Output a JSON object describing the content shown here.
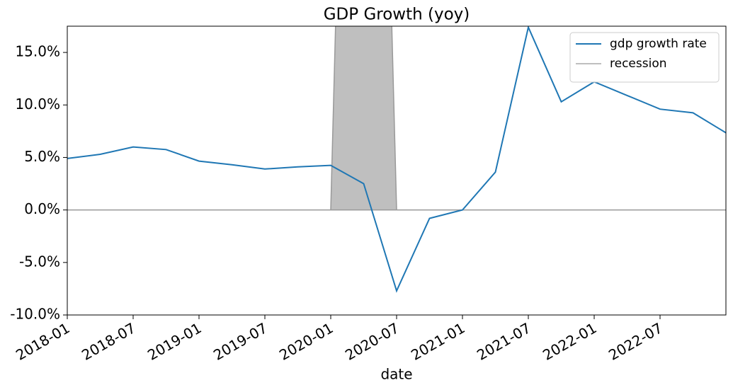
{
  "chart_data": {
    "type": "line",
    "title": "GDP Growth (yoy)",
    "x_label": "date",
    "xlim": [
      "2018-01",
      "2023-01"
    ],
    "xticks": [
      "2018-01",
      "2018-07",
      "2019-01",
      "2019-07",
      "2020-01",
      "2020-07",
      "2021-01",
      "2021-07",
      "2022-01",
      "2022-07"
    ],
    "ylim": [
      -10,
      17.5
    ],
    "yticks": [
      {
        "value": -10,
        "label": "-10.0%"
      },
      {
        "value": -5,
        "label": "-5.0%"
      },
      {
        "value": 0,
        "label": "0.0%"
      },
      {
        "value": 5,
        "label": "5.0%"
      },
      {
        "value": 10,
        "label": "10.0%"
      },
      {
        "value": 15,
        "label": "15.0%"
      }
    ],
    "legend": "upper right",
    "series": [
      {
        "name": "gdp growth rate",
        "color": "#1f77b4",
        "fill": false,
        "x": [
          "2018-01",
          "2018-04",
          "2018-07",
          "2018-10",
          "2019-01",
          "2019-04",
          "2019-07",
          "2019-10",
          "2020-01",
          "2020-04",
          "2020-07",
          "2020-10",
          "2021-01",
          "2021-04",
          "2021-07",
          "2021-10",
          "2022-01",
          "2022-04",
          "2022-07",
          "2022-10",
          "2023-01"
        ],
        "values": [
          4.9,
          5.3,
          6.0,
          5.75,
          4.65,
          4.3,
          3.9,
          4.1,
          4.25,
          2.5,
          -7.7,
          -0.8,
          0.0,
          3.6,
          17.4,
          10.3,
          12.2,
          10.9,
          9.6,
          9.25,
          7.35
        ]
      },
      {
        "name": "recession",
        "color": "#bfbfbf",
        "fill": true,
        "x": [
          "2018-01",
          "2020-01",
          "2020-02",
          "2020-06",
          "2020-07",
          "2023-01"
        ],
        "values": [
          0,
          0,
          40,
          40,
          0,
          0
        ]
      }
    ]
  }
}
